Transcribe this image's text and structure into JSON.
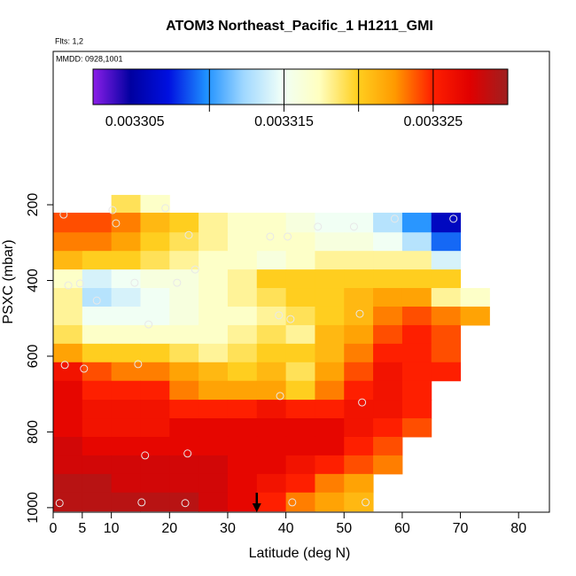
{
  "chart_data": {
    "type": "heatmap",
    "title": "ATOM3 Northeast_Pacific_1 H1211_GMI",
    "annotations": [
      "Flts: 1,2",
      "MMDD: 0928,1001"
    ],
    "xlabel": "Latitude (deg N)",
    "ylabel": "PSXC (mbar)",
    "lat_edges": [
      0,
      5,
      10,
      15,
      20,
      25,
      30,
      35,
      40,
      45,
      50,
      55,
      60,
      65,
      70,
      75
    ],
    "levels": [
      174,
      221,
      273,
      322,
      371,
      420,
      469,
      518,
      567,
      616,
      665,
      715,
      764,
      813,
      862,
      911,
      960,
      1009
    ],
    "values": [
      [
        null,
        null,
        0.003319,
        0.003317,
        null,
        null,
        null,
        null,
        null,
        null,
        null,
        null,
        null,
        null,
        null
      ],
      [
        0.003324,
        0.003324,
        0.003323,
        0.003321,
        0.00332,
        0.003318,
        0.003317,
        0.003317,
        0.003316,
        0.003315,
        0.003315,
        0.003313,
        0.00331,
        0.003306,
        null
      ],
      [
        0.003323,
        0.003323,
        0.003322,
        0.00332,
        0.003319,
        0.003318,
        0.003317,
        0.003317,
        0.003317,
        0.003316,
        0.003316,
        0.003315,
        0.003313,
        0.003309,
        null
      ],
      [
        0.003321,
        0.00332,
        0.00332,
        0.003319,
        0.003318,
        0.003317,
        0.003317,
        0.003316,
        0.003317,
        0.003318,
        0.003318,
        0.003318,
        0.003318,
        0.003314,
        null
      ],
      [
        0.003317,
        0.003314,
        0.003315,
        0.003316,
        0.003316,
        0.003317,
        0.003318,
        0.00332,
        0.00332,
        0.00332,
        0.00332,
        0.00332,
        0.00332,
        0.00332,
        null
      ],
      [
        0.003318,
        0.003313,
        0.003314,
        0.003315,
        0.003316,
        0.003317,
        0.003318,
        0.003319,
        0.00332,
        0.00332,
        0.003321,
        0.003322,
        0.003322,
        0.003318,
        0.003317
      ],
      [
        0.003318,
        0.003315,
        0.003315,
        0.003315,
        0.003316,
        0.003317,
        0.003317,
        0.003318,
        0.003319,
        0.00332,
        0.003321,
        0.003323,
        0.003324,
        0.003323,
        0.003322
      ],
      [
        0.003319,
        0.003317,
        0.003317,
        0.003317,
        0.003317,
        0.003317,
        0.003318,
        0.003319,
        0.003318,
        0.003321,
        0.003322,
        0.003324,
        0.003325,
        0.003324,
        null
      ],
      [
        0.003322,
        0.00332,
        0.00332,
        0.00332,
        0.003319,
        0.003318,
        0.003319,
        0.00332,
        0.00332,
        0.003321,
        0.003323,
        0.003325,
        0.003325,
        0.003324,
        null
      ],
      [
        0.003326,
        0.003324,
        0.003323,
        0.003323,
        0.003322,
        0.003321,
        0.00332,
        0.003321,
        0.003319,
        0.003322,
        0.003324,
        0.003326,
        0.003325,
        0.003325,
        null
      ],
      [
        0.003327,
        0.003325,
        0.003325,
        0.003325,
        0.003323,
        0.003322,
        0.003322,
        0.003322,
        0.00332,
        0.003323,
        0.003325,
        0.003326,
        0.003325,
        null,
        null
      ],
      [
        0.003327,
        0.003326,
        0.003326,
        0.003326,
        0.003325,
        0.003325,
        0.003325,
        0.003326,
        0.003325,
        0.003325,
        0.003326,
        0.003326,
        0.003325,
        null,
        null
      ],
      [
        0.003327,
        0.003326,
        0.003326,
        0.003326,
        0.003327,
        0.003327,
        0.003327,
        0.003327,
        0.003327,
        0.003327,
        0.003326,
        0.003325,
        0.003324,
        null,
        null
      ],
      [
        0.003328,
        0.003327,
        0.003327,
        0.003327,
        0.003327,
        0.003327,
        0.003327,
        0.003327,
        0.003327,
        0.003327,
        0.003325,
        0.003324,
        null,
        null,
        null
      ],
      [
        0.003328,
        0.003328,
        0.003328,
        0.003328,
        0.003328,
        0.003328,
        0.003327,
        0.003327,
        0.003326,
        0.003325,
        0.003324,
        0.003323,
        null,
        null,
        null
      ],
      [
        0.003329,
        0.003329,
        0.003328,
        0.003328,
        0.003328,
        0.003328,
        0.003327,
        0.003326,
        0.003325,
        0.003323,
        0.003322,
        null,
        null,
        null,
        null
      ],
      [
        0.003329,
        0.003329,
        0.003329,
        0.003329,
        0.003329,
        0.003328,
        0.003327,
        0.003325,
        0.003323,
        0.003322,
        0.003321,
        null,
        null,
        null,
        null
      ]
    ],
    "points": {
      "x": [
        1.8,
        10.2,
        19.3,
        10.8,
        23.3,
        37.3,
        40.3,
        45.5,
        51.7,
        58.7,
        68.8,
        24.4,
        2.6,
        4.6,
        14,
        21.3,
        7.5,
        16.4,
        38.8,
        40.8,
        52.7,
        14.6,
        2,
        5.3,
        39,
        53.1,
        15.8,
        23.1,
        1.1,
        15.2,
        22.7,
        41.1,
        53.7
      ],
      "y": [
        226,
        214,
        209,
        249,
        280,
        284,
        284,
        258,
        258,
        237,
        237,
        371,
        413,
        408,
        406,
        406,
        453,
        516,
        492,
        502,
        488,
        621,
        623,
        633,
        705,
        722,
        862,
        857,
        988,
        986,
        988,
        986,
        986
      ]
    },
    "arrow_x": 35,
    "xlim": [
      0,
      85.3
    ],
    "ylim": [
      -205,
      1012
    ],
    "xticks": [
      0,
      5,
      10,
      20,
      30,
      40,
      50,
      60,
      70,
      80
    ],
    "yticks": [
      200,
      400,
      600,
      800,
      1000
    ],
    "colorbar": {
      "clim": [
        0.0033022,
        0.00333
      ],
      "ticks": [
        0.003305,
        0.003315,
        0.003325
      ],
      "breaks": [
        0.00331,
        0.003315,
        0.00332,
        0.003325
      ],
      "colors": [
        "#8b1ee8",
        "#0000a0",
        "#0010e0",
        "#1e90ff",
        "#a0d8ff",
        "#f0fff8",
        "#ffffc0",
        "#ffd020",
        "#ff9a00",
        "#ff2000",
        "#e00000",
        "#9e2020"
      ]
    }
  }
}
